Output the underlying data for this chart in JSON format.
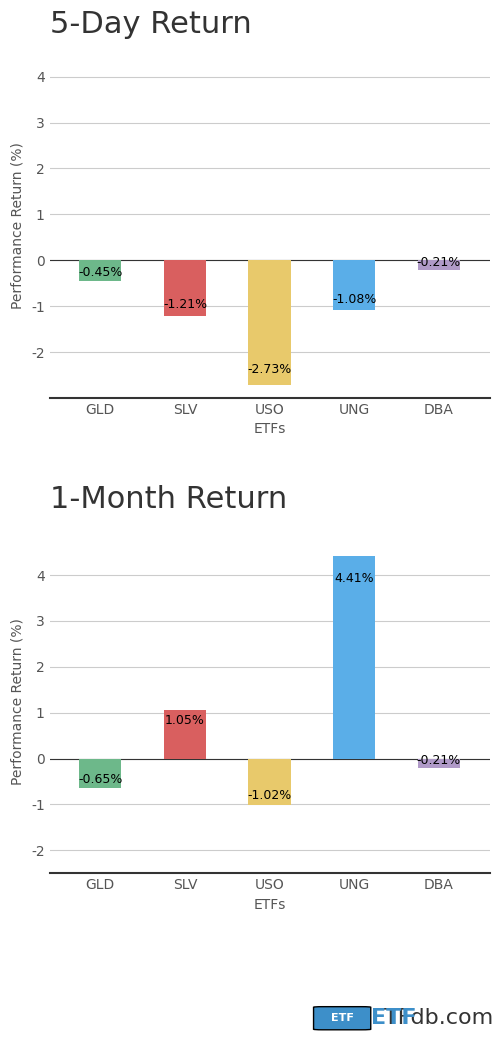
{
  "chart1_title": "5-Day Return",
  "chart2_title": "1-Month Return",
  "etfs": [
    "GLD",
    "SLV",
    "USO",
    "UNG",
    "DBA"
  ],
  "chart1_values": [
    -0.45,
    -1.21,
    -2.73,
    -1.08,
    -0.21
  ],
  "chart2_values": [
    -0.65,
    1.05,
    -1.02,
    4.41,
    -0.21
  ],
  "bar_colors": [
    "#6db88a",
    "#d95f5f",
    "#e8c96b",
    "#5aaee8",
    "#b09ac8"
  ],
  "chart1_labels": [
    "-0.45%",
    "-1.21%",
    "-2.73%",
    "-1.08%",
    "-0.21%"
  ],
  "chart2_labels": [
    "-0.65%",
    "1.05%",
    "-1.02%",
    "4.41%",
    "-0.21%"
  ],
  "xlabel": "ETFs",
  "ylabel": "Performance Return (%)",
  "chart1_ylim": [
    -3.0,
    4.5
  ],
  "chart2_ylim": [
    -2.5,
    5.0
  ],
  "chart1_yticks": [
    -2,
    -1,
    0,
    1,
    2,
    3,
    4
  ],
  "chart2_yticks": [
    -2,
    -1,
    0,
    1,
    2,
    3,
    4
  ],
  "bg_color": "#ffffff",
  "grid_color": "#cccccc",
  "title_fontsize": 22,
  "label_fontsize": 9,
  "axis_fontsize": 10,
  "tick_fontsize": 10,
  "etfdb_box_color": "#3d8fc9",
  "etfdb_text": "ETFdb.com",
  "etf_label": "ETF"
}
